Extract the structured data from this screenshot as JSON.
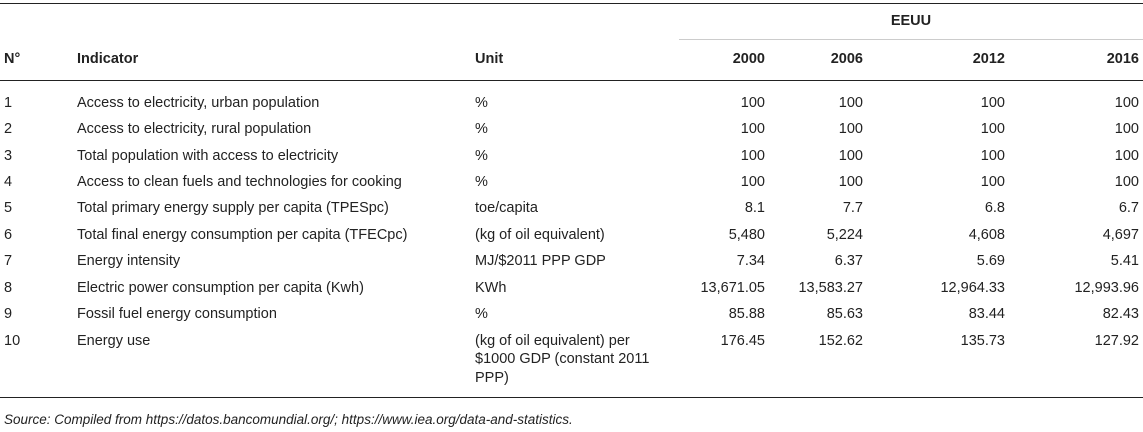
{
  "table": {
    "group_header": "EEUU",
    "columns": {
      "no": "N°",
      "indicator": "Indicator",
      "unit": "Unit",
      "years": [
        "2000",
        "2006",
        "2012",
        "2016"
      ]
    },
    "rows": [
      {
        "no": "1",
        "indicator": "Access to electricity, urban population",
        "unit": "%",
        "values": [
          "100",
          "100",
          "100",
          "100"
        ]
      },
      {
        "no": "2",
        "indicator": "Access to electricity, rural population",
        "unit": "%",
        "values": [
          "100",
          "100",
          "100",
          "100"
        ]
      },
      {
        "no": "3",
        "indicator": "Total population with access to electricity",
        "unit": "%",
        "values": [
          "100",
          "100",
          "100",
          "100"
        ]
      },
      {
        "no": "4",
        "indicator": "Access to clean fuels and technologies for cooking",
        "unit": "%",
        "values": [
          "100",
          "100",
          "100",
          "100"
        ]
      },
      {
        "no": "5",
        "indicator": "Total primary energy supply per capita (TPESpc)",
        "unit": "toe/capita",
        "values": [
          "8.1",
          "7.7",
          "6.8",
          "6.7"
        ]
      },
      {
        "no": "6",
        "indicator": "Total final energy consumption per capita (TFECpc)",
        "unit": "(kg of oil equivalent)",
        "values": [
          "5,480",
          "5,224",
          "4,608",
          "4,697"
        ]
      },
      {
        "no": "7",
        "indicator": "Energy intensity",
        "unit": "MJ/$2011 PPP GDP",
        "values": [
          "7.34",
          "6.37",
          "5.69",
          "5.41"
        ]
      },
      {
        "no": "8",
        "indicator": "Electric power consumption per capita (Kwh)",
        "unit": "KWh",
        "values": [
          "13,671.05",
          "13,583.27",
          "12,964.33",
          "12,993.96"
        ]
      },
      {
        "no": "9",
        "indicator": "Fossil fuel energy consumption",
        "unit": "%",
        "values": [
          "85.88",
          "85.63",
          "83.44",
          "82.43"
        ]
      },
      {
        "no": "10",
        "indicator": "Energy use",
        "unit": "(kg of oil equivalent) per $1000 GDP (constant 2011 PPP)",
        "values": [
          "176.45",
          "152.62",
          "135.73",
          "127.92"
        ]
      }
    ]
  },
  "footnote": "Source: Compiled from https://datos.bancomundial.org/; https://www.iea.org/data-and-statistics."
}
